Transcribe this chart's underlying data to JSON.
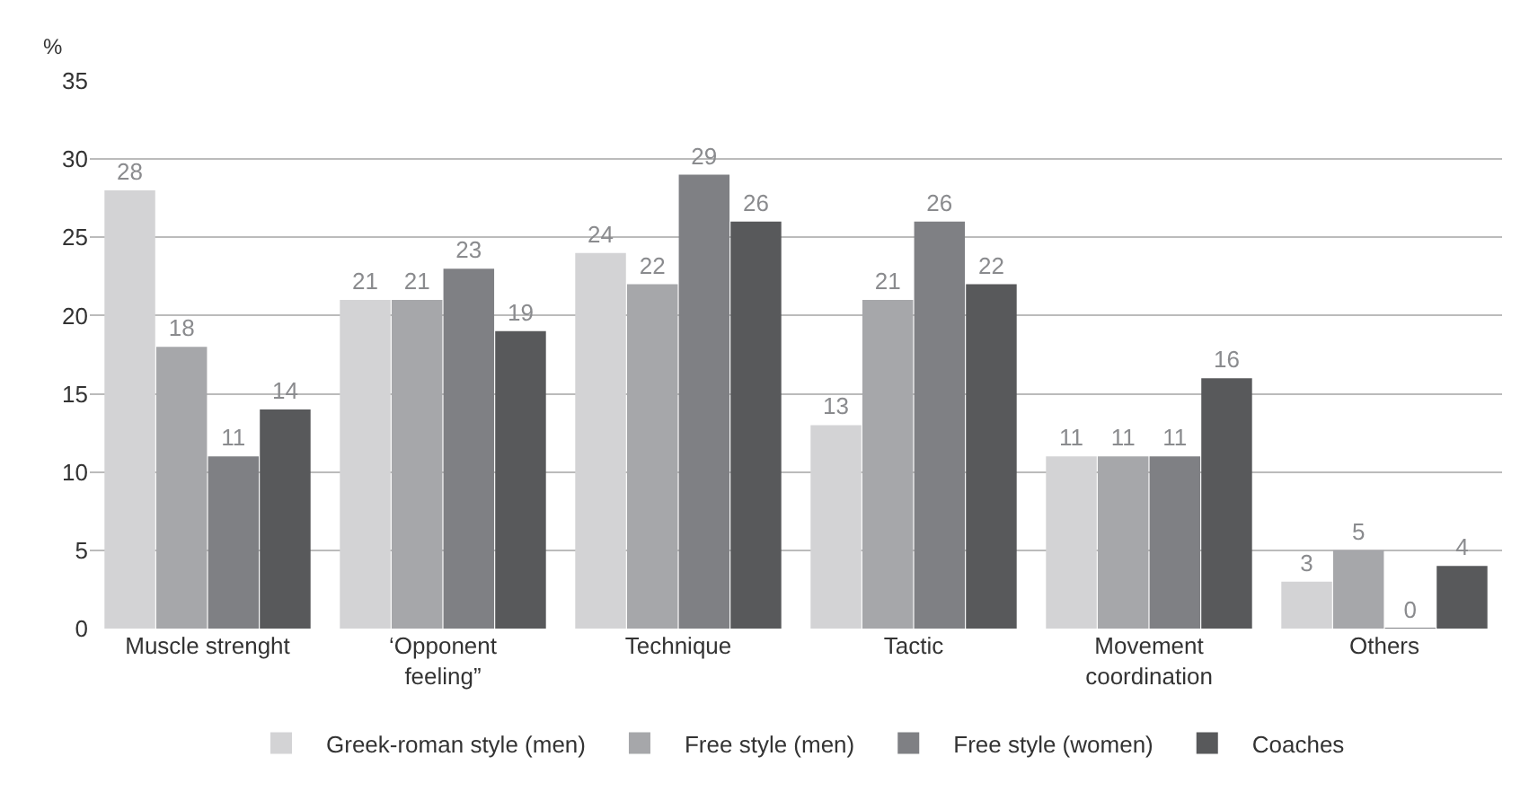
{
  "chart_data": {
    "type": "bar",
    "ylabel": "%",
    "categories": [
      "Muscle strenght",
      "‘Opponent feeling”",
      "Technique",
      "Tactic",
      "Movement coordination",
      "Others"
    ],
    "series": [
      {
        "name": "Greek-roman style (men)",
        "color": "#d3d3d5",
        "values": [
          28,
          21,
          24,
          13,
          11,
          3
        ]
      },
      {
        "name": "Free style (men)",
        "color": "#a6a7aa",
        "values": [
          18,
          21,
          22,
          21,
          11,
          5
        ]
      },
      {
        "name": "Free style (women)",
        "color": "#7f8084",
        "values": [
          11,
          23,
          29,
          26,
          11,
          0
        ]
      },
      {
        "name": "Coaches",
        "color": "#58595b",
        "values": [
          14,
          19,
          26,
          22,
          16,
          4
        ]
      }
    ],
    "ylim": [
      0,
      35
    ],
    "yticks": [
      0,
      5,
      10,
      15,
      20,
      25,
      30,
      35
    ],
    "grid": "y",
    "legend": "bottom",
    "data_labels": true
  }
}
